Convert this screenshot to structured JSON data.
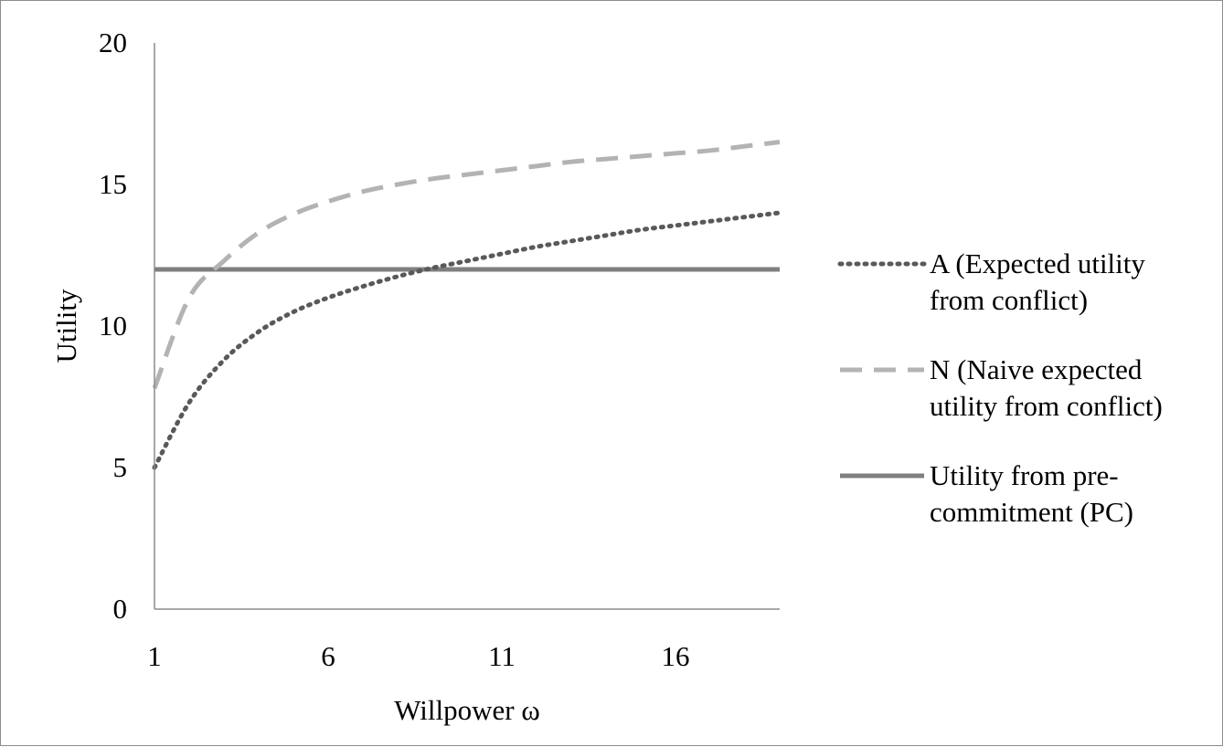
{
  "chart_data": {
    "type": "line",
    "title": "",
    "xlabel": "Willpower  ω",
    "ylabel": "Utility",
    "xlim": [
      1,
      19
    ],
    "ylim": [
      0,
      20
    ],
    "x_ticks": [
      1,
      6,
      11,
      16
    ],
    "y_ticks": [
      0,
      5,
      10,
      15,
      20
    ],
    "x_tick_labels": [
      "1",
      "6",
      "11",
      "16"
    ],
    "y_tick_labels": [
      "0",
      "5",
      "10",
      "15",
      "20"
    ],
    "grid": false,
    "legend_position": "right",
    "x": [
      1,
      2,
      3,
      4,
      5,
      6,
      7,
      8,
      9,
      10,
      11,
      12,
      13,
      14,
      15,
      16,
      17,
      18,
      19
    ],
    "series": [
      {
        "name_lines": [
          "A (Expected utility",
          "from conflict)"
        ],
        "style": "dotted",
        "color": "#595959",
        "values": [
          5.0,
          7.3,
          8.8,
          9.8,
          10.5,
          11.0,
          11.4,
          11.75,
          12.05,
          12.3,
          12.55,
          12.8,
          13.0,
          13.2,
          13.4,
          13.55,
          13.7,
          13.85,
          14.0
        ]
      },
      {
        "name_lines": [
          "N (Naive expected",
          "utility from conflict)"
        ],
        "style": "dashed",
        "color": "#b3b3b3",
        "values": [
          7.8,
          11.0,
          12.3,
          13.3,
          13.95,
          14.4,
          14.75,
          15.0,
          15.2,
          15.35,
          15.5,
          15.65,
          15.8,
          15.9,
          16.0,
          16.1,
          16.2,
          16.35,
          16.5
        ]
      },
      {
        "name_lines": [
          "Utility from pre-",
          "commitment (PC)"
        ],
        "style": "solid",
        "color": "#7f7f7f",
        "values": [
          12,
          12,
          12,
          12,
          12,
          12,
          12,
          12,
          12,
          12,
          12,
          12,
          12,
          12,
          12,
          12,
          12,
          12,
          12
        ]
      }
    ]
  }
}
